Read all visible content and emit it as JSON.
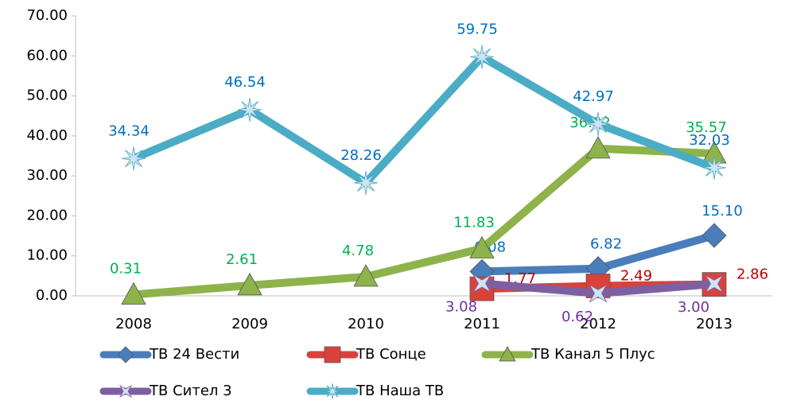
{
  "chart_data": {
    "type": "line",
    "categories": [
      "2008",
      "2009",
      "2010",
      "2011",
      "2012",
      "2013"
    ],
    "ylim": [
      0,
      70
    ],
    "yticks": [
      {
        "value": 0,
        "label": "0.00"
      },
      {
        "value": 10,
        "label": "10.00"
      },
      {
        "value": 20,
        "label": "20.00"
      },
      {
        "value": 30,
        "label": "30.00"
      },
      {
        "value": 40,
        "label": "40.00"
      },
      {
        "value": 50,
        "label": "50.00"
      },
      {
        "value": 60,
        "label": "60.00"
      },
      {
        "value": 70,
        "label": "70.00"
      }
    ],
    "legend": "bottom",
    "series": [
      {
        "name": "ТВ 24 Вести",
        "color": "#4a7ebb",
        "label_color": "#0070c0",
        "marker": "diamond",
        "values": [
          null,
          null,
          null,
          6.08,
          6.82,
          15.1
        ],
        "value_labels": [
          null,
          null,
          null,
          "6.08",
          "6.82",
          "15.10"
        ]
      },
      {
        "name": "ТВ Сонце",
        "color": "#d9423b",
        "label_color": "#c00000",
        "marker": "square",
        "values": [
          null,
          null,
          null,
          1.77,
          2.49,
          2.86
        ],
        "value_labels": [
          null,
          null,
          null,
          "1.77",
          "2.49",
          "2.86"
        ]
      },
      {
        "name": "ТВ Канал 5 Плус",
        "color": "#8db34a",
        "label_color": "#00b050",
        "marker": "triangle",
        "values": [
          0.31,
          2.61,
          4.78,
          11.83,
          36.82,
          35.57
        ],
        "value_labels": [
          "0.31",
          "2.61",
          "4.78",
          "11.83",
          "36.82",
          "35.57"
        ]
      },
      {
        "name": "ТВ Сител 3",
        "color": "#7e5fa2",
        "label_color": "#7030a0",
        "marker": "x",
        "values": [
          null,
          null,
          null,
          3.08,
          0.62,
          3.0
        ],
        "value_labels": [
          null,
          null,
          null,
          "3.08",
          "0.62",
          "3.00"
        ]
      },
      {
        "name": "ТВ Наша ТВ",
        "color": "#4bacc6",
        "label_color": "#0070c0",
        "marker": "star",
        "values": [
          34.34,
          46.54,
          28.26,
          59.75,
          42.97,
          32.03
        ],
        "value_labels": [
          "34.34",
          "46.54",
          "28.26",
          "59.75",
          "42.97",
          "32.03"
        ]
      }
    ]
  }
}
